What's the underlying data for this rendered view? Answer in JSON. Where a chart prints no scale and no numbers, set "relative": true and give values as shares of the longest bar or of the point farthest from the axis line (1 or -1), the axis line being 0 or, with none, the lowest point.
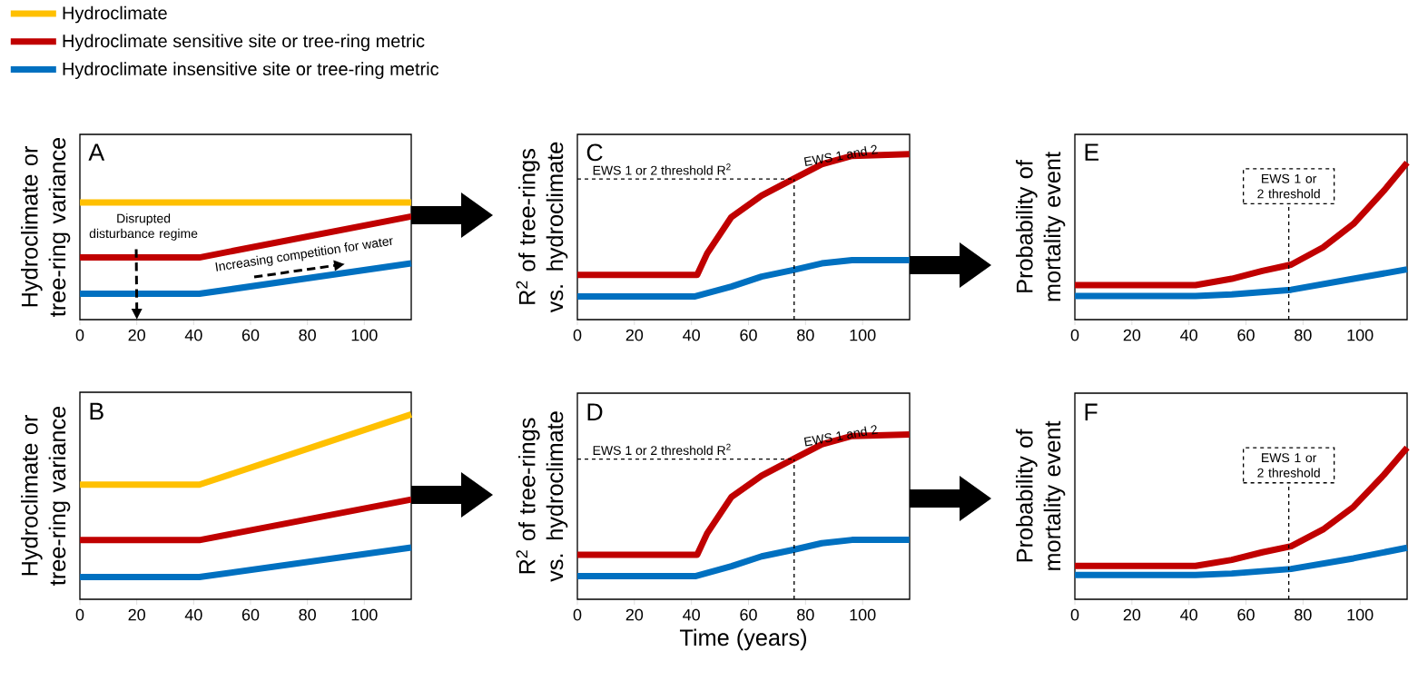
{
  "chart_data": [
    {
      "type": "line",
      "relative": true,
      "ylabel": "Hydroclimate or tree-ring variance",
      "xlim": [
        0,
        116.5
      ],
      "xticks": [
        0,
        20,
        40,
        60,
        80,
        100
      ],
      "legend": "top left",
      "annotations": [
        "A",
        "Disrupted disturbance regime",
        "Increasing competition for water"
      ],
      "series": [
        {
          "name": "Hydroclimate",
          "color": "#ffc000",
          "x": [
            0,
            116.5
          ],
          "values": [
            1,
            1
          ]
        },
        {
          "name": "Hydroclimate sensitive site or tree-ring metric",
          "color": "#c00000",
          "x": [
            0,
            42,
            116.5
          ],
          "values": [
            0.53,
            0.53,
            0.88
          ]
        },
        {
          "name": "Hydroclimate insensitive site or tree-ring metric",
          "color": "#0070c0",
          "x": [
            0,
            42,
            116.5
          ],
          "values": [
            0.22,
            0.22,
            0.48
          ]
        }
      ]
    },
    {
      "type": "line",
      "relative": true,
      "ylabel": "R$^{2}$ of tree-rings vs. hydroclimate",
      "xlim": [
        0,
        116.5
      ],
      "xticks": [
        0,
        20,
        40,
        60,
        80,
        100
      ],
      "annotations": [
        "C",
        {
          "text": "EWS 1 and 2",
          "x": 93,
          "y": 0.93
        }
      ],
      "ref_lines": [
        {
          "axis": "y",
          "value": 0.85,
          "label": "EWS 1 or 2 threshold R$^{2}$",
          "line_style": "dashed"
        },
        {
          "axis": "x",
          "value": 76,
          "line_style": "dashed"
        }
      ],
      "series": [
        {
          "color": "#c00000",
          "x": [
            0,
            42,
            45.5,
            54,
            64.6,
            75.7,
            85.7,
            96.3,
            116.4
          ],
          "values": [
            0.27,
            0.27,
            0.4,
            0.62,
            0.75,
            0.85,
            0.94,
            0.99,
            1
          ]
        },
        {
          "color": "#0070c0",
          "x": [
            0,
            41.3,
            54,
            64.6,
            75.7,
            85.7,
            96.3,
            116.4
          ],
          "values": [
            0.14,
            0.14,
            0.2,
            0.26,
            0.3,
            0.34,
            0.36,
            0.36
          ]
        }
      ]
    },
    {
      "type": "line",
      "relative": true,
      "ylabel": "Probability of mortality event",
      "xlim": [
        0,
        116.5
      ],
      "xticks": [
        0,
        20,
        40,
        60,
        80,
        100
      ],
      "annotations": [
        "E"
      ],
      "ref_lines": [
        {
          "axis": "x",
          "value": 75,
          "label": "EWS 1 or 2 threshold",
          "line_style": "dashed"
        }
      ],
      "series": [
        {
          "color": "#c00000",
          "x": [
            0,
            42.3,
            55,
            65.7,
            75.8,
            87,
            97.7,
            108.3,
            116.5
          ],
          "values": [
            0.22,
            0.22,
            0.26,
            0.31,
            0.35,
            0.46,
            0.61,
            0.82,
            1
          ]
        },
        {
          "color": "#0070c0",
          "x": [
            0,
            42.3,
            55,
            75.8,
            97.7,
            116.5
          ],
          "values": [
            0.15,
            0.15,
            0.16,
            0.19,
            0.26,
            0.32
          ]
        }
      ]
    },
    {
      "type": "line",
      "relative": true,
      "ylabel": "Hydroclimate or tree-ring variance",
      "xlim": [
        0,
        116.5
      ],
      "xticks": [
        0,
        20,
        40,
        60,
        80,
        100
      ],
      "annotations": [
        "B"
      ],
      "series": [
        {
          "color": "#ffc000",
          "x": [
            0,
            42,
            116.5
          ],
          "values": [
            0.62,
            0.62,
            1
          ]
        },
        {
          "color": "#c00000",
          "x": [
            0,
            42,
            116.5
          ],
          "values": [
            0.32,
            0.32,
            0.54
          ]
        },
        {
          "color": "#0070c0",
          "x": [
            0,
            42,
            116.5
          ],
          "values": [
            0.12,
            0.12,
            0.28
          ]
        }
      ]
    },
    {
      "type": "line",
      "relative": true,
      "ylabel": "R$^{2}$ of tree-rings vs. hydroclimate",
      "xlabel": "Time (years)",
      "xlim": [
        0,
        116.5
      ],
      "xticks": [
        0,
        20,
        40,
        60,
        80,
        100
      ],
      "annotations": [
        "D",
        {
          "text": "EWS 1 and 2",
          "x": 93,
          "y": 0.93
        }
      ],
      "ref_lines": [
        {
          "axis": "y",
          "value": 0.85,
          "label": "EWS 1 or 2 threshold R$^{2}$",
          "line_style": "dashed"
        },
        {
          "axis": "x",
          "value": 76,
          "line_style": "dashed"
        }
      ],
      "series": [
        {
          "color": "#c00000",
          "x": [
            0,
            42,
            45.5,
            54,
            64.6,
            75.7,
            85.7,
            96.3,
            116.4
          ],
          "values": [
            0.27,
            0.27,
            0.4,
            0.62,
            0.75,
            0.85,
            0.94,
            0.99,
            1
          ]
        },
        {
          "color": "#0070c0",
          "x": [
            0,
            41.3,
            54,
            64.6,
            75.7,
            85.7,
            96.3,
            116.4
          ],
          "values": [
            0.14,
            0.14,
            0.2,
            0.26,
            0.3,
            0.34,
            0.36,
            0.36
          ]
        }
      ]
    },
    {
      "type": "line",
      "relative": true,
      "ylabel": "Probability of mortality event",
      "xlim": [
        0,
        116.5
      ],
      "xticks": [
        0,
        20,
        40,
        60,
        80,
        100
      ],
      "annotations": [
        "F"
      ],
      "ref_lines": [
        {
          "axis": "x",
          "value": 75,
          "label": "EWS 1 or 2 threshold",
          "line_style": "dashed"
        }
      ],
      "series": [
        {
          "color": "#c00000",
          "x": [
            0,
            42.3,
            55,
            65.7,
            75.8,
            87,
            97.7,
            108.3,
            116.5
          ],
          "values": [
            0.22,
            0.22,
            0.26,
            0.31,
            0.35,
            0.46,
            0.61,
            0.82,
            1
          ]
        },
        {
          "color": "#0070c0",
          "x": [
            0,
            42.3,
            55,
            75.8,
            97.7,
            116.5
          ],
          "values": [
            0.16,
            0.16,
            0.17,
            0.2,
            0.27,
            0.34
          ]
        }
      ]
    }
  ]
}
